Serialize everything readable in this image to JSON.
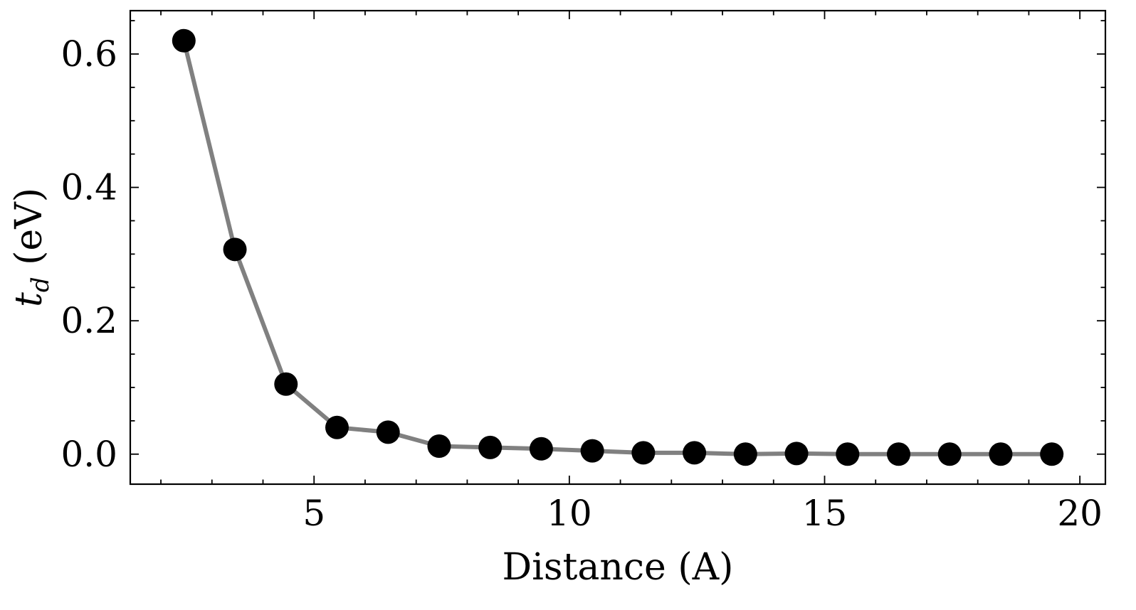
{
  "chart_data": {
    "type": "line",
    "xlabel": "Distance (A)",
    "ylabel_main": "t",
    "ylabel_sub": "d",
    "ylabel_unit": " (eV)",
    "xlim": [
      1.4,
      20.5
    ],
    "ylim": [
      -0.045,
      0.665
    ],
    "xticks": [
      5,
      10,
      15,
      20
    ],
    "xtick_labels": [
      "5",
      "10",
      "15",
      "20"
    ],
    "yticks": [
      0.0,
      0.2,
      0.4,
      0.6
    ],
    "ytick_labels": [
      "0.0",
      "0.2",
      "0.4",
      "0.6"
    ],
    "x_minor_step": 1,
    "y_minor_step": 0.05,
    "grid": false,
    "line_color": "#808080",
    "marker_color": "#000000",
    "series": [
      {
        "x": [
          2.45,
          3.45,
          4.45,
          5.45,
          6.45,
          7.45,
          8.45,
          9.45,
          10.45,
          11.45,
          12.45,
          13.45,
          14.45,
          15.45,
          16.45,
          17.45,
          18.45,
          19.45
        ],
        "y": [
          0.62,
          0.307,
          0.105,
          0.04,
          0.033,
          0.012,
          0.01,
          0.008,
          0.005,
          0.002,
          0.002,
          0.0,
          0.001,
          0.0,
          0.0,
          0.0,
          0.0,
          0.0
        ]
      }
    ]
  }
}
